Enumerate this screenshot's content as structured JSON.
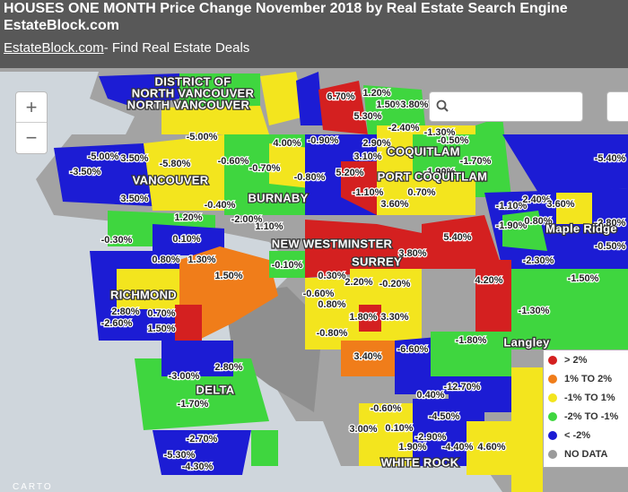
{
  "header": {
    "title": "HOUSES ONE MONTH Price Change November 2018 by Real Estate Search Engine EstateBlock.com",
    "link": "EstateBlock.com",
    "tagline": "- Find Real Estate Deals"
  },
  "zoom": [
    "+",
    "−"
  ],
  "legend": [
    {
      "label": "> 2%",
      "color": "#d42020"
    },
    {
      "label": "1% TO 2%",
      "color": "#f07d1a"
    },
    {
      "label": "-1% TO 1%",
      "color": "#f3e51e"
    },
    {
      "label": "-2% TO -1%",
      "color": "#3fd63f"
    },
    {
      "label": "< -2%",
      "color": "#1c1cd4"
    },
    {
      "label": "NO DATA",
      "color": "#9b9b9b"
    }
  ],
  "places": [
    "DISTRICT OF",
    "NORTH VANCOUVER",
    "NORTH VANCOUVER",
    "VANCOUVER",
    "BURNABY",
    "COQUITLAM",
    "PORT COQUITLAM",
    "NEW WESTMINSTER",
    "SURREY",
    "RICHMOND",
    "DELTA",
    "Langley",
    "WHITE ROCK",
    "Maple Ridge"
  ],
  "changes": [
    "6.70%",
    "1.20%",
    "5.30%",
    "1.50%",
    "3.80%",
    "-5.00%",
    "3.50%",
    "-3.50%",
    "-5.80%",
    "-5.00%",
    "4.00%",
    "-0.90%",
    "2.90%",
    "-2.40%",
    "-1.30%",
    "-0.50%",
    "-1.70%",
    "-5.40%",
    "5.20%",
    "3.10%",
    "-1.90%",
    "-1.10%",
    "0.70%",
    "3.60%",
    "-1.10%",
    "2.40%",
    "3.60%",
    "-1.90%",
    "0.80%",
    "-2.80%",
    "-0.50%",
    "-0.30%",
    "0.10%",
    "0.80%",
    "1.30%",
    "1.50%",
    "-0.10%",
    "5.40%",
    "3.80%",
    "-2.30%",
    "-1.50%",
    "0.30%",
    "2.20%",
    "-0.20%",
    "4.20%",
    "-0.60%",
    "0.80%",
    "1.80%",
    "3.30%",
    "-1.30%",
    "-0.80%",
    "-1.80%",
    "3.40%",
    "-6.60%",
    "2.80%",
    "-3.00%",
    "-1.70%",
    "0.40%",
    "-12.70%",
    "-0.60%",
    "-4.50%",
    "3.00%",
    "0.10%",
    "-2.90%",
    "1.90%",
    "-4.40%",
    "4.60%",
    "-2.70%",
    "-5.30%",
    "-4.30%",
    "1.50%",
    "-2.60%",
    "2.80%",
    "0.70%",
    "3.50%",
    "1.20%",
    "-0.40%",
    "-2.00%",
    "1.10%",
    "-0.80%",
    "-0.60%",
    "-0.70%"
  ],
  "attribution": "CARTO"
}
